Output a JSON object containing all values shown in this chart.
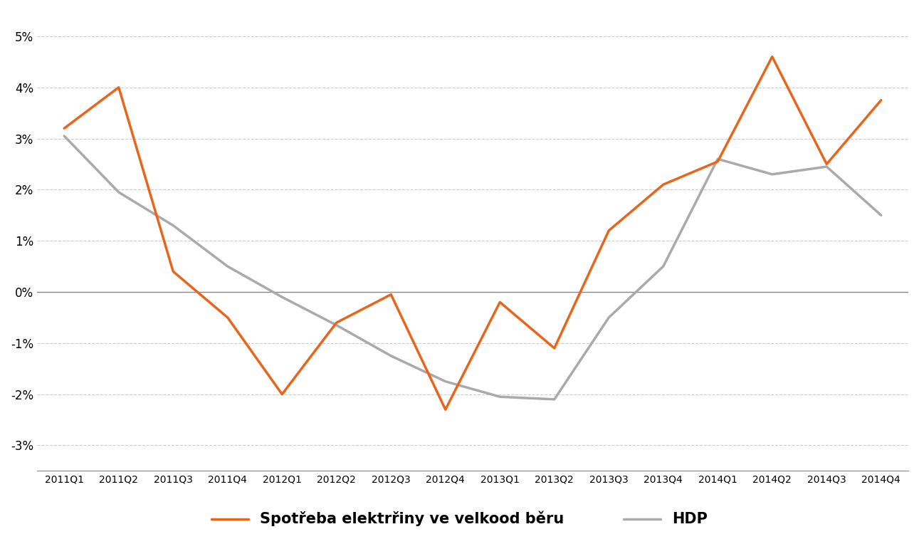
{
  "categories": [
    "2011Q1",
    "2011Q2",
    "2011Q3",
    "2011Q4",
    "2012Q1",
    "2012Q2",
    "2012Q3",
    "2012Q4",
    "2013Q1",
    "2013Q2",
    "2013Q3",
    "2013Q4",
    "2014Q1",
    "2014Q2",
    "2014Q3",
    "2014Q4"
  ],
  "spotreba": [
    0.032,
    0.04,
    0.004,
    -0.005,
    -0.02,
    -0.006,
    -0.0005,
    -0.023,
    -0.002,
    -0.011,
    0.012,
    0.021,
    0.0255,
    0.046,
    0.025,
    0.0375
  ],
  "hdp": [
    0.0305,
    0.0195,
    0.013,
    0.005,
    -0.001,
    -0.0065,
    -0.0125,
    -0.0175,
    -0.0205,
    -0.021,
    -0.005,
    0.005,
    0.026,
    0.023,
    0.0245,
    0.015
  ],
  "spotreba_color": "#E8651A",
  "hdp_color": "#AAAAAA",
  "background_color": "#FFFFFF",
  "ylim_min": -0.035,
  "ylim_max": 0.055,
  "yticks": [
    -0.03,
    -0.02,
    -0.01,
    0.0,
    0.01,
    0.02,
    0.03,
    0.04,
    0.05
  ],
  "legend_spotreba": "Spotřeba elektrřiny ve velkood běru",
  "legend_hdp": "HDP",
  "line_width": 2.5,
  "grid_color": "#CCCCCC",
  "grid_style": "--",
  "zero_line_color": "#888888",
  "tick_label_fontsize": 12,
  "legend_fontsize": 15
}
